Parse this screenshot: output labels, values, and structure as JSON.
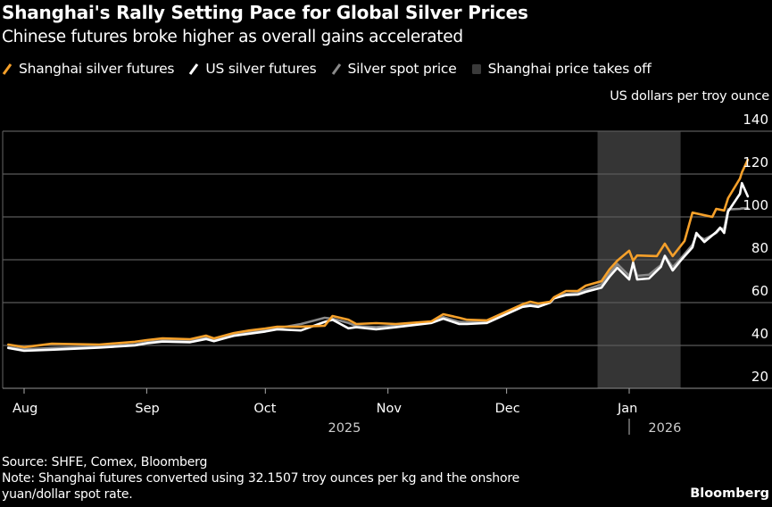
{
  "title": "Shanghai's Rally Setting Pace for Global Silver Prices",
  "subtitle": "Chinese futures broke higher as overall gains accelerated",
  "legend": [
    {
      "label": "Shanghai silver futures",
      "icon": "orange-line-icon",
      "color": "#f5a02a"
    },
    {
      "label": "US silver futures",
      "icon": "white-line-icon",
      "color": "#ffffff"
    },
    {
      "label": "Silver spot price",
      "icon": "gray-line-icon",
      "color": "#8a8a8a"
    },
    {
      "label": "Shanghai price takes off",
      "icon": "shaded-box-icon",
      "color": "#3a3a3a"
    }
  ],
  "unit_label": "US dollars per troy ounce",
  "footer": {
    "source": "Source: SHFE, Comex, Bloomberg",
    "note_line1": "Note: Shanghai futures converted using 32.1507 troy ounces per kg and the onshore",
    "note_line2": "yuan/dollar spot rate."
  },
  "brand": "Bloomberg",
  "chart_data": {
    "type": "line",
    "title": "Shanghai's Rally Setting Pace for Global Silver Prices",
    "subtitle": "Chinese futures broke higher as overall gains accelerated",
    "ylabel": "US dollars per troy ounce",
    "xlabel": "",
    "ylim": [
      20,
      140
    ],
    "y_ticks": [
      20,
      40,
      60,
      80,
      100,
      120,
      140
    ],
    "y_axis_side": "right",
    "grid": true,
    "legend_position": "top-left",
    "x_domain_days": [
      -7,
      148
    ],
    "x_ticks": [
      {
        "label": "Aug",
        "day": 0
      },
      {
        "label": "Sep",
        "day": 31
      },
      {
        "label": "Oct",
        "day": 61
      },
      {
        "label": "Nov",
        "day": 92
      },
      {
        "label": "Dec",
        "day": 122
      },
      {
        "label": "Jan",
        "day": 153
      }
    ],
    "year_labels": [
      {
        "label": "2025",
        "day": 81
      },
      {
        "label": "2026",
        "day": 162
      }
    ],
    "year_divider_day": 153,
    "x_ref": "days since 2025-08-01",
    "shaded_region": {
      "label": "Shanghai price takes off",
      "start_day": 145,
      "end_day": 166
    },
    "series": [
      {
        "name": "Shanghai silver futures",
        "color": "#f5a02a",
        "points": [
          [
            -4,
            40.4
          ],
          [
            0,
            39.2
          ],
          [
            7,
            40.8
          ],
          [
            19,
            40.4
          ],
          [
            28,
            41.7
          ],
          [
            31,
            42.5
          ],
          [
            35,
            43.3
          ],
          [
            42,
            42.9
          ],
          [
            46,
            44.6
          ],
          [
            48,
            43.3
          ],
          [
            53,
            45.8
          ],
          [
            57,
            47.0
          ],
          [
            61,
            47.9
          ],
          [
            64,
            48.75
          ],
          [
            70,
            48.8
          ],
          [
            76,
            49.2
          ],
          [
            78,
            53.75
          ],
          [
            82,
            52.0
          ],
          [
            84,
            50.0
          ],
          [
            89,
            50.4
          ],
          [
            94,
            50.0
          ],
          [
            103,
            51.25
          ],
          [
            106,
            54.6
          ],
          [
            110,
            52.9
          ],
          [
            112,
            52.0
          ],
          [
            117,
            51.7
          ],
          [
            120,
            54.2
          ],
          [
            126,
            59.2
          ],
          [
            128,
            60.4
          ],
          [
            130,
            59.6
          ],
          [
            133,
            60.4
          ],
          [
            134,
            62.5
          ],
          [
            137,
            65.4
          ],
          [
            140,
            65.4
          ],
          [
            142,
            67.9
          ],
          [
            146,
            70.0
          ],
          [
            148,
            75.4
          ],
          [
            150,
            79.6
          ],
          [
            153,
            84.2
          ],
          [
            154,
            79.6
          ],
          [
            155,
            82.0
          ],
          [
            160,
            81.7
          ],
          [
            162,
            87.5
          ],
          [
            164,
            81.7
          ],
          [
            167,
            88.75
          ],
          [
            169,
            102.0
          ],
          [
            174,
            100.0
          ],
          [
            175,
            103.75
          ],
          [
            177,
            103.0
          ],
          [
            178,
            108.75
          ],
          [
            181,
            117.9
          ],
          [
            181.5,
            120.8
          ],
          [
            183,
            126.7
          ]
        ]
      },
      {
        "name": "US silver futures",
        "color": "#ffffff",
        "points": [
          [
            -4,
            38.8
          ],
          [
            0,
            37.5
          ],
          [
            7,
            38.0
          ],
          [
            19,
            39.0
          ],
          [
            28,
            40.0
          ],
          [
            31,
            41.0
          ],
          [
            35,
            41.8
          ],
          [
            42,
            41.5
          ],
          [
            46,
            43.0
          ],
          [
            48,
            42.0
          ],
          [
            53,
            44.5
          ],
          [
            57,
            45.5
          ],
          [
            61,
            46.5
          ],
          [
            64,
            47.5
          ],
          [
            70,
            47.0
          ],
          [
            76,
            51.0
          ],
          [
            78,
            52.0
          ],
          [
            82,
            48.0
          ],
          [
            84,
            48.5
          ],
          [
            89,
            47.5
          ],
          [
            94,
            48.5
          ],
          [
            103,
            50.5
          ],
          [
            106,
            52.5
          ],
          [
            110,
            50.0
          ],
          [
            112,
            50.0
          ],
          [
            117,
            50.5
          ],
          [
            120,
            53.0
          ],
          [
            126,
            58.0
          ],
          [
            128,
            58.5
          ],
          [
            130,
            58.0
          ],
          [
            133,
            60.0
          ],
          [
            134,
            62.0
          ],
          [
            137,
            63.5
          ],
          [
            140,
            63.75
          ],
          [
            142,
            65.0
          ],
          [
            146,
            67.0
          ],
          [
            148,
            72.0
          ],
          [
            150,
            76.25
          ],
          [
            153,
            70.8
          ],
          [
            154,
            78.75
          ],
          [
            155,
            70.8
          ],
          [
            158,
            71.25
          ],
          [
            161,
            76.7
          ],
          [
            162,
            81.7
          ],
          [
            164,
            75.0
          ],
          [
            166,
            79.6
          ],
          [
            169,
            85.8
          ],
          [
            170,
            92.5
          ],
          [
            172,
            88.3
          ],
          [
            175,
            92.9
          ],
          [
            176,
            95.0
          ],
          [
            177,
            92.5
          ],
          [
            178,
            102.5
          ],
          [
            181,
            110.8
          ],
          [
            181.5,
            115.8
          ],
          [
            183,
            109.6
          ]
        ]
      },
      {
        "name": "Silver spot price",
        "color": "#8a8a8a",
        "points": [
          [
            -4,
            39.2
          ],
          [
            0,
            38.2
          ],
          [
            7,
            38.8
          ],
          [
            19,
            39.5
          ],
          [
            28,
            40.5
          ],
          [
            31,
            41.5
          ],
          [
            35,
            42.2
          ],
          [
            42,
            42.0
          ],
          [
            46,
            43.6
          ],
          [
            48,
            42.6
          ],
          [
            53,
            45.0
          ],
          [
            57,
            46.2
          ],
          [
            61,
            47.0
          ],
          [
            64,
            48.0
          ],
          [
            70,
            50.0
          ],
          [
            76,
            52.9
          ],
          [
            78,
            52.5
          ],
          [
            82,
            50.5
          ],
          [
            84,
            49.0
          ],
          [
            89,
            48.5
          ],
          [
            94,
            49.2
          ],
          [
            103,
            51.0
          ],
          [
            106,
            53.2
          ],
          [
            110,
            51.0
          ],
          [
            112,
            50.8
          ],
          [
            117,
            51.0
          ],
          [
            120,
            53.5
          ],
          [
            126,
            58.5
          ],
          [
            128,
            59.0
          ],
          [
            130,
            58.5
          ],
          [
            133,
            60.0
          ],
          [
            134,
            62.3
          ],
          [
            137,
            64.0
          ],
          [
            140,
            64.5
          ],
          [
            142,
            66.0
          ],
          [
            146,
            68.5
          ],
          [
            148,
            73.5
          ],
          [
            150,
            78.0
          ],
          [
            153,
            72.5
          ],
          [
            154,
            77.5
          ],
          [
            155,
            72.5
          ],
          [
            158,
            73.0
          ],
          [
            161,
            77.5
          ],
          [
            162,
            82.0
          ],
          [
            164,
            76.5
          ],
          [
            166,
            80.5
          ],
          [
            169,
            87.0
          ],
          [
            170,
            91.5
          ],
          [
            172,
            89.5
          ],
          [
            175,
            92.5
          ],
          [
            176,
            94.5
          ],
          [
            177,
            94.5
          ],
          [
            178,
            103.5
          ],
          [
            181,
            103.75
          ],
          [
            181.5,
            104.0
          ],
          [
            183,
            104.0
          ]
        ]
      }
    ]
  }
}
